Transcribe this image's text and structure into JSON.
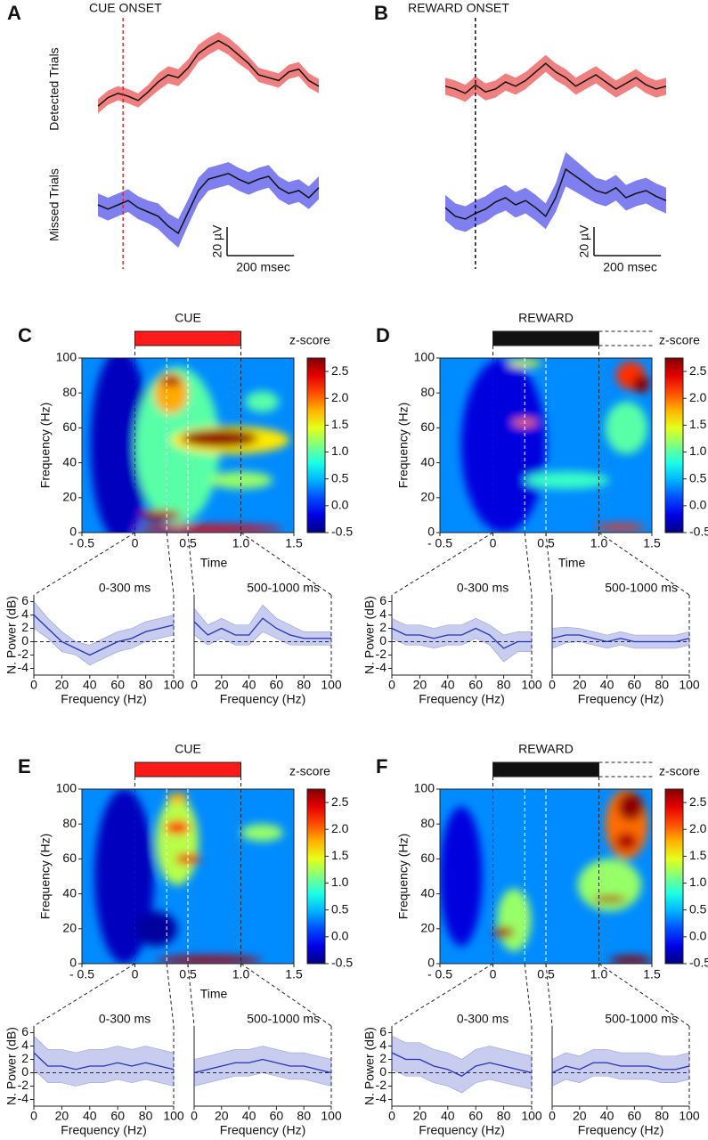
{
  "chart_data": [
    {
      "type": "trace",
      "panel": "A",
      "title": "CUE ONSET",
      "onset_color": "#e02020",
      "x": [
        -75,
        -45,
        -15,
        15,
        45,
        75,
        105,
        135,
        165,
        195,
        225,
        255,
        285,
        315,
        345,
        375,
        405,
        435,
        465,
        495,
        525,
        555,
        585
      ],
      "series": [
        {
          "name": "Detected Trials",
          "color": "#f08080",
          "values": [
            -12,
            -6,
            -3,
            -5,
            -8,
            -2,
            5,
            10,
            8,
            15,
            25,
            30,
            34,
            30,
            24,
            18,
            10,
            8,
            6,
            12,
            14,
            6,
            2
          ],
          "errors": [
            5,
            5,
            5,
            5,
            5,
            5,
            6,
            6,
            6,
            6,
            6,
            6,
            6,
            6,
            6,
            5,
            5,
            5,
            5,
            5,
            5,
            5,
            5
          ]
        },
        {
          "name": "Missed Trials",
          "color": "#7f7ff0",
          "values": [
            0,
            -3,
            0,
            3,
            -2,
            -5,
            -8,
            -15,
            -20,
            -5,
            10,
            18,
            20,
            22,
            18,
            15,
            18,
            20,
            12,
            8,
            10,
            5,
            12
          ],
          "errors": [
            8,
            8,
            8,
            8,
            8,
            8,
            9,
            9,
            10,
            9,
            9,
            8,
            8,
            8,
            8,
            8,
            8,
            8,
            8,
            8,
            8,
            8,
            8
          ]
        }
      ],
      "scale_bar": {
        "y": 20,
        "y_label": "20 µV",
        "x": 200,
        "x_label": "200 msec"
      }
    },
    {
      "type": "trace",
      "panel": "B",
      "title": "REWARD ONSET",
      "onset_color": "#000000",
      "x": [
        -90,
        -60,
        -30,
        0,
        30,
        60,
        90,
        120,
        150,
        180,
        210,
        240,
        270,
        300,
        330,
        360,
        390,
        420,
        450,
        480,
        510,
        540,
        570
      ],
      "series": [
        {
          "color": "#f08080",
          "values": [
            2,
            0,
            -3,
            3,
            -2,
            0,
            5,
            2,
            6,
            12,
            18,
            12,
            8,
            2,
            6,
            10,
            5,
            0,
            4,
            8,
            3,
            0,
            2
          ],
          "errors": [
            6,
            6,
            6,
            6,
            6,
            6,
            6,
            6,
            6,
            6,
            6,
            6,
            6,
            6,
            6,
            6,
            6,
            6,
            6,
            6,
            6,
            6,
            6
          ]
        },
        {
          "color": "#7f7ff0",
          "values": [
            -2,
            -8,
            -10,
            -6,
            -3,
            2,
            5,
            0,
            3,
            -2,
            -8,
            5,
            25,
            20,
            15,
            10,
            8,
            12,
            5,
            8,
            10,
            6,
            3
          ],
          "errors": [
            9,
            9,
            9,
            9,
            9,
            9,
            9,
            9,
            9,
            9,
            9,
            10,
            12,
            11,
            10,
            9,
            9,
            9,
            9,
            9,
            9,
            9,
            9
          ]
        }
      ],
      "scale_bar": {
        "y": 20,
        "y_label": "20 µV",
        "x": 200,
        "x_label": "200 msec"
      }
    },
    {
      "type": "spectrogram",
      "panel": "C",
      "event": "CUE",
      "event_color": "#ff1a1a",
      "xlabel": "Time",
      "ylabel": "Frequency (Hz)",
      "colorbar_label": "z-score",
      "xlim": [
        -0.5,
        1.5
      ],
      "ylim": [
        0,
        100
      ],
      "xticks": [
        {
          "value": -0.5,
          "label": "- 0.5"
        },
        0,
        0.5,
        {
          "value": 1,
          "label": "1.0"
        },
        1.5
      ],
      "yticks": [
        0,
        20,
        40,
        60,
        80,
        100
      ],
      "clim": [
        -0.5,
        2.75
      ],
      "cticks": [
        -0.5,
        {
          "value": 0,
          "label": "0.0"
        },
        0.5,
        {
          "value": 1,
          "label": "1.0"
        },
        1.5,
        {
          "value": 2,
          "label": "2.0"
        },
        2.5
      ],
      "markers": [
        0,
        0.3,
        0.5,
        1
      ],
      "spectra": {
        "ylabel": "N. Power (dB)",
        "xlabel": "Frequency (Hz)",
        "color": "#2233bb",
        "xlim": [
          0,
          100
        ],
        "ylim": [
          -5,
          7
        ],
        "xticks": [
          0,
          20,
          40,
          60,
          80,
          100
        ],
        "yticks": [
          -4,
          -2,
          0,
          2,
          4,
          6
        ],
        "x": [
          0,
          10,
          20,
          30,
          40,
          50,
          60,
          70,
          80,
          90,
          100
        ],
        "panels": [
          {
            "title": "0-300 ms",
            "values": [
              4,
              2,
              0,
              -1,
              -2,
              -1,
              0,
              0.5,
              1.5,
              2,
              2.5
            ],
            "errors": [
              2,
              1.5,
              1.5,
              1,
              1.5,
              1.5,
              1.5,
              1.5,
              1.5,
              1.5,
              1.5
            ]
          },
          {
            "title": "500-1000 ms",
            "values": [
              3,
              1,
              2,
              1,
              1,
              3.5,
              2,
              1,
              0.5,
              0.5,
              0.5
            ],
            "errors": [
              2,
              1.5,
              1.5,
              1.5,
              1.5,
              2,
              1.5,
              1.5,
              1,
              1,
              1
            ]
          }
        ]
      }
    },
    {
      "type": "spectrogram",
      "panel": "D",
      "event": "REWARD",
      "event_color": "#111111",
      "xlabel": "Time",
      "ylabel": "Frequency (Hz)",
      "colorbar_label": "z-score",
      "xlim": [
        -0.5,
        1.5
      ],
      "ylim": [
        0,
        100
      ],
      "xticks": [
        {
          "value": -0.5,
          "label": "- 0.5"
        },
        0,
        0.5,
        {
          "value": 1,
          "label": "1.0"
        },
        1.5
      ],
      "yticks": [
        0,
        20,
        40,
        60,
        80,
        100
      ],
      "clim": [
        -0.5,
        2.75
      ],
      "cticks": [
        -0.5,
        {
          "value": 0,
          "label": "0.0"
        },
        0.5,
        {
          "value": 1,
          "label": "1.0"
        },
        1.5,
        {
          "value": 2,
          "label": "2.0"
        },
        2.5
      ],
      "markers": [
        0,
        0.3,
        0.5,
        1
      ],
      "spectra": {
        "ylabel": "N. Power (dB)",
        "xlabel": "Frequency (Hz)",
        "color": "#2233bb",
        "xlim": [
          0,
          100
        ],
        "ylim": [
          -5,
          7
        ],
        "xticks": [
          0,
          20,
          40,
          60,
          80,
          100
        ],
        "yticks": [
          -4,
          -2,
          0,
          2,
          4,
          6
        ],
        "x": [
          0,
          10,
          20,
          30,
          40,
          50,
          60,
          70,
          80,
          90,
          100
        ],
        "panels": [
          {
            "title": "0-300 ms",
            "values": [
              2,
              1,
              1,
              0.5,
              1,
              1,
              2,
              1,
              -1,
              0,
              0
            ],
            "errors": [
              1.5,
              1.5,
              1.5,
              1.5,
              1.5,
              1.5,
              1.5,
              1.5,
              2,
              1.5,
              1.5
            ]
          },
          {
            "title": "500-1000 ms",
            "values": [
              0.5,
              1,
              1,
              0.5,
              0,
              0.5,
              0,
              0,
              0,
              0,
              0.5
            ],
            "errors": [
              1.5,
              1.2,
              1,
              1,
              1,
              1,
              1,
              1,
              1,
              1,
              1
            ]
          }
        ]
      }
    },
    {
      "type": "spectrogram",
      "panel": "E",
      "event": "CUE",
      "event_color": "#ff1a1a",
      "xlabel": "Time",
      "ylabel": "Frequency (Hz)",
      "colorbar_label": "z-score",
      "xlim": [
        -0.5,
        1.5
      ],
      "ylim": [
        0,
        100
      ],
      "xticks": [
        {
          "value": -0.5,
          "label": "- 0.5"
        },
        0,
        0.5,
        {
          "value": 1,
          "label": "1.0"
        },
        1.5
      ],
      "yticks": [
        0,
        20,
        40,
        60,
        80,
        100
      ],
      "clim": [
        -0.5,
        2.75
      ],
      "cticks": [
        -0.5,
        {
          "value": 0,
          "label": "0.0"
        },
        0.5,
        {
          "value": 1,
          "label": "1.0"
        },
        1.5,
        {
          "value": 2,
          "label": "2.0"
        },
        2.5
      ],
      "markers": [
        0,
        0.3,
        0.5,
        1
      ],
      "spectra": {
        "ylabel": "N. Power (dB)",
        "xlabel": "Frequency (Hz)",
        "color": "#2233bb",
        "xlim": [
          0,
          100
        ],
        "ylim": [
          -5,
          7
        ],
        "xticks": [
          0,
          20,
          40,
          60,
          80,
          100
        ],
        "yticks": [
          -4,
          -2,
          0,
          2,
          4,
          6
        ],
        "x": [
          0,
          10,
          20,
          30,
          40,
          50,
          60,
          70,
          80,
          90,
          100
        ],
        "panels": [
          {
            "title": "0-300 ms",
            "values": [
              3,
              1,
              1,
              0.5,
              1,
              1,
              1.5,
              1,
              1.5,
              1,
              0.5
            ],
            "errors": [
              2.5,
              2.5,
              2.5,
              2.5,
              2.5,
              2.5,
              2.5,
              2.5,
              2.5,
              2.5,
              2.5
            ]
          },
          {
            "title": "500-1000 ms",
            "values": [
              0,
              0.5,
              1,
              1.5,
              1.5,
              2,
              1.5,
              1,
              1,
              0.5,
              0
            ],
            "errors": [
              2,
              2,
              2,
              2,
              2,
              2,
              2,
              2,
              2,
              2,
              2
            ]
          }
        ]
      }
    },
    {
      "type": "spectrogram",
      "panel": "F",
      "event": "REWARD",
      "event_color": "#111111",
      "ylabel": "Frequency (Hz)",
      "colorbar_label": "z-score",
      "xlim": [
        -0.5,
        1.5
      ],
      "ylim": [
        0,
        100
      ],
      "xticks": [
        {
          "value": -0.5,
          "label": "- 0.5"
        },
        0,
        0.5,
        {
          "value": 1,
          "label": "1.0"
        },
        1.5
      ],
      "yticks": [
        0,
        20,
        40,
        60,
        80,
        100
      ],
      "clim": [
        -0.5,
        2.75
      ],
      "cticks": [
        -0.5,
        {
          "value": 0,
          "label": "0.0"
        },
        0.5,
        {
          "value": 1,
          "label": "1.0"
        },
        1.5,
        {
          "value": 2,
          "label": "2.0"
        },
        2.5
      ],
      "markers": [
        0,
        0.3,
        0.5,
        1
      ],
      "spectra": {
        "ylabel": "N. Power (dB)",
        "xlabel": "Frequency (Hz)",
        "color": "#2233bb",
        "xlim": [
          0,
          100
        ],
        "ylim": [
          -5,
          7
        ],
        "xticks": [
          0,
          20,
          40,
          60,
          80,
          100
        ],
        "yticks": [
          -4,
          -2,
          0,
          2,
          4,
          6
        ],
        "x": [
          0,
          10,
          20,
          30,
          40,
          50,
          60,
          70,
          80,
          90,
          100
        ],
        "panels": [
          {
            "title": "0-300 ms",
            "values": [
              3,
              2,
              2,
              1,
              0.5,
              -0.5,
              1,
              1.5,
              1,
              0.5,
              0
            ],
            "errors": [
              2.5,
              2.5,
              2.5,
              2.5,
              2.5,
              2.5,
              2.5,
              2.5,
              2.5,
              2.5,
              2.5
            ]
          },
          {
            "title": "500-1000 ms",
            "values": [
              0,
              1,
              0.5,
              1.5,
              1.5,
              1,
              1,
              1,
              0.5,
              0.5,
              1
            ],
            "errors": [
              2,
              2,
              2,
              2,
              2,
              2,
              2,
              2,
              2,
              2,
              2
            ]
          }
        ]
      }
    }
  ]
}
